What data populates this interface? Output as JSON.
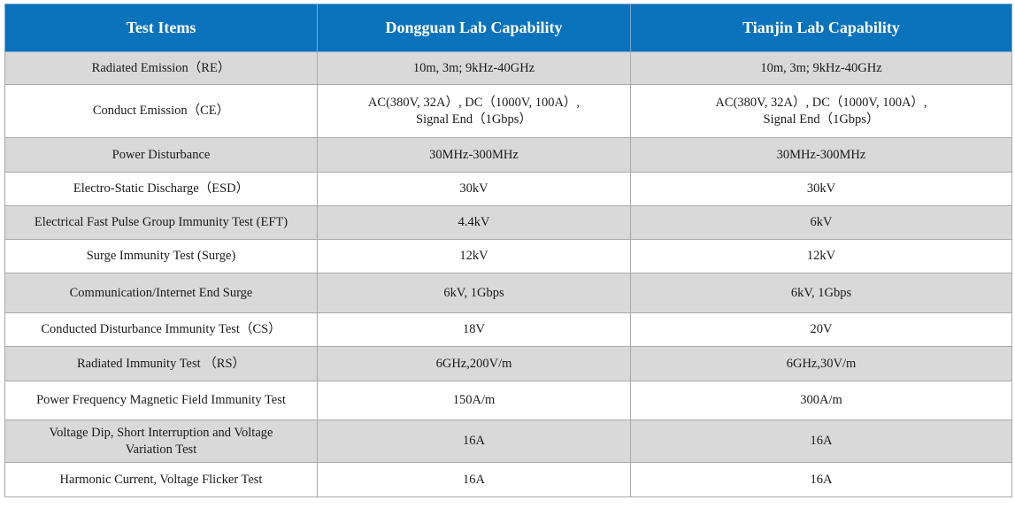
{
  "table": {
    "headers": [
      "Test Items",
      "Dongguan Lab Capability",
      "Tianjin Lab Capability"
    ],
    "rows": [
      {
        "item": "Radiated Emission（RE）",
        "dongguan": "10m, 3m; 9kHz-40GHz",
        "tianjin": "10m, 3m; 9kHz-40GHz",
        "shade": true
      },
      {
        "item": "Conduct Emission（CE）",
        "dongguan": "AC(380V, 32A）, DC（1000V, 100A）,\nSignal End（1Gbps）",
        "tianjin": "AC(380V, 32A）, DC（1000V, 100A）,\nSignal End（1Gbps）",
        "shade": false
      },
      {
        "item": "Power Disturbance",
        "dongguan": "30MHz-300MHz",
        "tianjin": "30MHz-300MHz",
        "shade": true
      },
      {
        "item": "Electro-Static Discharge（ESD）",
        "dongguan": "30kV",
        "tianjin": "30kV",
        "shade": false
      },
      {
        "item": "Electrical Fast Pulse Group Immunity Test (EFT)",
        "dongguan": "4.4kV",
        "tianjin": "6kV",
        "shade": true
      },
      {
        "item": "Surge Immunity Test (Surge)",
        "dongguan": "12kV",
        "tianjin": "12kV",
        "shade": false
      },
      {
        "item": "Communication/Internet End Surge",
        "dongguan": "6kV, 1Gbps",
        "tianjin": "6kV, 1Gbps",
        "shade": true
      },
      {
        "item": "Conducted Disturbance Immunity Test（CS）",
        "dongguan": "18V",
        "tianjin": "20V",
        "shade": false
      },
      {
        "item": "Radiated Immunity Test （RS）",
        "dongguan": "6GHz,200V/m",
        "tianjin": "6GHz,30V/m",
        "shade": true
      },
      {
        "item": "Power Frequency Magnetic Field Immunity Test",
        "dongguan": "150A/m",
        "tianjin": "300A/m",
        "shade": false
      },
      {
        "item": "Voltage Dip, Short Interruption and Voltage\nVariation Test",
        "dongguan": "16A",
        "tianjin": "16A",
        "shade": true
      },
      {
        "item": "Harmonic Current, Voltage Flicker Test",
        "dongguan": "16A",
        "tianjin": "16A",
        "shade": false
      }
    ]
  }
}
